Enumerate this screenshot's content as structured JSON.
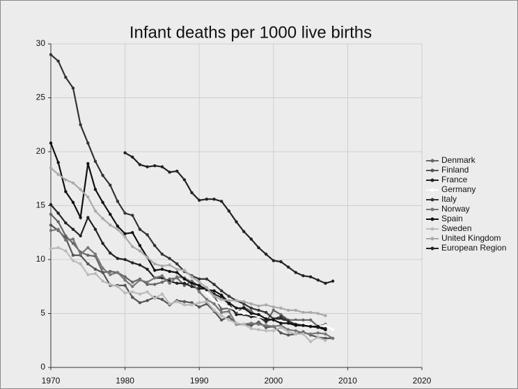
{
  "chart_data": {
    "type": "line",
    "title": "Infant deaths per 1000 live births",
    "x": [
      1970,
      1971,
      1972,
      1973,
      1974,
      1975,
      1976,
      1977,
      1978,
      1979,
      1980,
      1981,
      1982,
      1983,
      1984,
      1985,
      1986,
      1987,
      1988,
      1989,
      1990,
      1991,
      1992,
      1993,
      1994,
      1995,
      1996,
      1997,
      1998,
      1999,
      2000,
      2001,
      2002,
      2003,
      2004,
      2005,
      2006,
      2007,
      2008
    ],
    "series": [
      {
        "name": "Denmark",
        "color": "#666666",
        "values": [
          14.2,
          13.5,
          12.2,
          11.5,
          10.7,
          10.4,
          10.3,
          8.8,
          8.9,
          8.8,
          8.4,
          7.9,
          8.2,
          7.7,
          7.7,
          7.9,
          8.2,
          8.3,
          7.6,
          8.0,
          7.5,
          7.3,
          6.6,
          5.4,
          5.5,
          5.1,
          5.6,
          5.2,
          4.7,
          4.2,
          5.3,
          4.9,
          4.4,
          4.4,
          4.4,
          4.4,
          3.8,
          4.0,
          null
        ]
      },
      {
        "name": "Finland",
        "color": "#555555",
        "values": [
          13.2,
          12.7,
          12.0,
          10.4,
          10.4,
          9.6,
          9.1,
          8.8,
          7.6,
          7.6,
          7.6,
          6.5,
          6.0,
          6.2,
          6.5,
          6.3,
          5.8,
          6.2,
          6.1,
          6.0,
          5.6,
          5.9,
          5.2,
          4.4,
          4.7,
          4.0,
          4.0,
          3.9,
          4.2,
          3.7,
          3.8,
          3.2,
          3.0,
          3.1,
          3.3,
          3.0,
          2.8,
          2.7,
          2.7
        ]
      },
      {
        "name": "France",
        "color": "#222222",
        "values": [
          15.1,
          14.3,
          13.4,
          12.8,
          12.2,
          13.9,
          12.8,
          11.5,
          10.6,
          10.1,
          10.0,
          9.7,
          9.5,
          9.1,
          8.3,
          8.3,
          8.0,
          7.8,
          7.8,
          7.5,
          7.3,
          7.3,
          6.8,
          6.5,
          5.9,
          4.9,
          4.9,
          4.7,
          4.7,
          4.3,
          4.5,
          4.5,
          4.2,
          4.0,
          3.9,
          3.8,
          3.8,
          3.6,
          null
        ]
      },
      {
        "name": "Germany",
        "color": "#ffffff",
        "values": [
          null,
          null,
          null,
          null,
          null,
          null,
          null,
          null,
          null,
          null,
          null,
          null,
          null,
          null,
          null,
          null,
          null,
          null,
          null,
          null,
          null,
          6.9,
          6.2,
          5.8,
          5.6,
          5.3,
          5.0,
          4.9,
          4.7,
          4.5,
          4.4,
          4.3,
          4.2,
          4.2,
          4.1,
          3.9,
          3.8,
          3.9,
          3.5
        ]
      },
      {
        "name": "Italy",
        "color": "#333333",
        "values": [
          29.0,
          28.4,
          26.9,
          25.9,
          22.5,
          20.8,
          19.1,
          17.8,
          16.9,
          15.4,
          14.3,
          14.1,
          12.8,
          12.3,
          11.3,
          10.5,
          10.1,
          9.6,
          8.9,
          8.5,
          8.2,
          8.2,
          7.7,
          7.1,
          6.6,
          6.2,
          5.9,
          5.5,
          5.3,
          5.1,
          4.5,
          4.7,
          4.3,
          4.0,
          3.9,
          3.8,
          3.7,
          3.5,
          null
        ]
      },
      {
        "name": "Norway",
        "color": "#777777",
        "values": [
          12.7,
          12.8,
          11.8,
          11.9,
          10.5,
          11.1,
          10.5,
          9.2,
          8.6,
          8.8,
          8.1,
          7.5,
          8.1,
          7.9,
          8.3,
          8.5,
          7.8,
          8.4,
          8.3,
          7.9,
          7.0,
          6.3,
          5.9,
          5.1,
          5.2,
          4.0,
          4.0,
          4.1,
          4.0,
          3.9,
          3.8,
          3.9,
          3.5,
          3.4,
          3.2,
          3.1,
          3.2,
          3.1,
          2.7
        ]
      },
      {
        "name": "Spain",
        "color": "#111111",
        "values": [
          20.8,
          19.0,
          16.3,
          15.3,
          13.9,
          18.9,
          16.5,
          15.3,
          14.2,
          13.1,
          12.4,
          12.5,
          11.3,
          10.2,
          9.0,
          9.1,
          8.9,
          8.8,
          8.2,
          7.8,
          7.6,
          7.2,
          7.1,
          6.7,
          6.0,
          5.5,
          5.5,
          5.0,
          4.9,
          4.5,
          4.4,
          4.1,
          4.1,
          3.9,
          3.9,
          3.8,
          3.8,
          3.5,
          null
        ]
      },
      {
        "name": "Sweden",
        "color": "#bbbbbb",
        "values": [
          11.0,
          11.1,
          10.8,
          9.9,
          9.6,
          8.6,
          8.7,
          8.0,
          7.7,
          7.5,
          6.9,
          7.0,
          6.8,
          7.0,
          6.4,
          6.8,
          5.9,
          6.1,
          5.8,
          5.8,
          6.0,
          6.1,
          5.3,
          4.8,
          4.4,
          4.1,
          4.0,
          3.6,
          3.5,
          3.4,
          3.4,
          3.7,
          3.3,
          3.1,
          3.1,
          2.4,
          2.8,
          2.5,
          null
        ]
      },
      {
        "name": "United Kingdom",
        "color": "#aaaaaa",
        "values": [
          18.5,
          17.9,
          17.4,
          17.1,
          16.5,
          15.8,
          14.5,
          13.8,
          13.2,
          12.8,
          12.1,
          11.2,
          10.8,
          10.2,
          9.6,
          9.4,
          9.5,
          9.1,
          9.0,
          8.4,
          7.9,
          7.4,
          6.6,
          6.3,
          6.2,
          6.2,
          6.1,
          5.9,
          5.7,
          5.8,
          5.6,
          5.5,
          5.3,
          5.3,
          5.1,
          5.1,
          5.0,
          4.8,
          null
        ]
      },
      {
        "name": "European Region",
        "color": "#222222",
        "values": [
          null,
          null,
          null,
          null,
          null,
          null,
          null,
          null,
          null,
          null,
          19.9,
          19.5,
          18.8,
          18.6,
          18.7,
          18.6,
          18.1,
          18.2,
          17.4,
          16.2,
          15.5,
          15.6,
          15.6,
          15.4,
          14.5,
          13.5,
          12.6,
          11.9,
          11.1,
          10.5,
          9.9,
          9.8,
          9.3,
          8.8,
          8.5,
          8.4,
          8.1,
          7.8,
          8.0
        ]
      }
    ],
    "xlim": [
      1970,
      2020
    ],
    "xticks": [
      1970,
      1980,
      1990,
      2000,
      2010,
      2020
    ],
    "ylim": [
      0,
      30
    ],
    "yticks": [
      0,
      5,
      10,
      15,
      20,
      25,
      30
    ],
    "grid": true,
    "legend": "right"
  }
}
